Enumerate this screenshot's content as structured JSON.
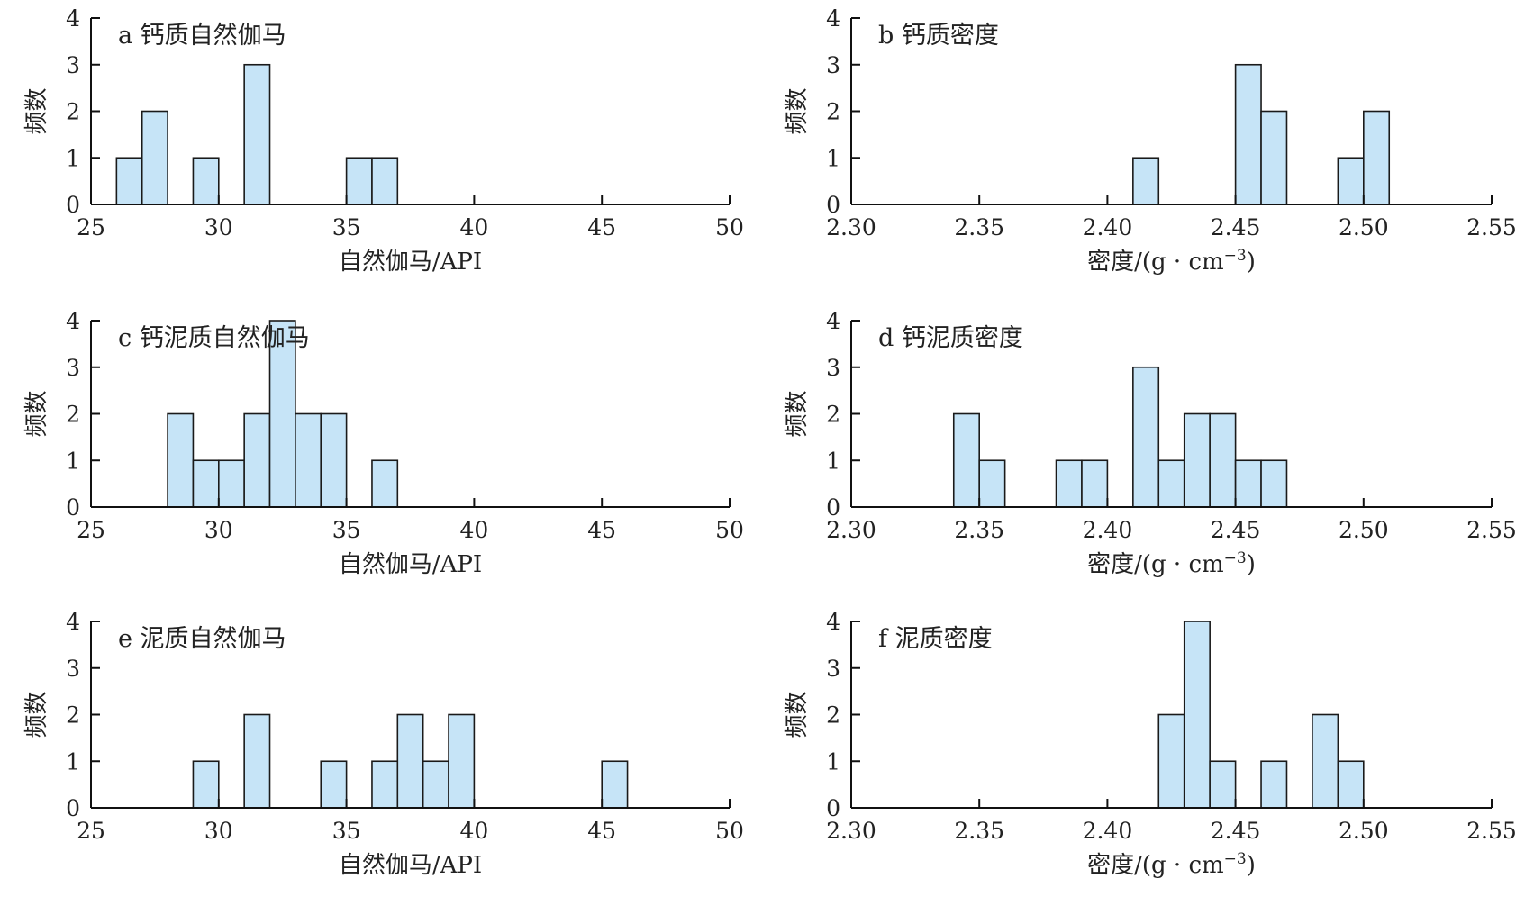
{
  "chart_data": [
    {
      "type": "bar",
      "title": "a 钙质自然伽马",
      "xlabel": "自然伽马/API",
      "ylabel": "频数",
      "xlim": [
        25,
        50
      ],
      "ylim": [
        0,
        4
      ],
      "xticks": [
        "25",
        "30",
        "35",
        "40",
        "45",
        "50"
      ],
      "yticks": [
        "0",
        "1",
        "2",
        "3",
        "4"
      ],
      "bins": [
        {
          "start": 26,
          "end": 27,
          "count": 1
        },
        {
          "start": 27,
          "end": 28,
          "count": 2
        },
        {
          "start": 29,
          "end": 30,
          "count": 1
        },
        {
          "start": 31,
          "end": 32,
          "count": 3
        },
        {
          "start": 35,
          "end": 36,
          "count": 1
        },
        {
          "start": 36,
          "end": 37,
          "count": 1
        }
      ]
    },
    {
      "type": "bar",
      "title": "b 钙质密度",
      "xlabel": "密度/(g · cm",
      "xlabel_sup": "−3",
      "xlabel_suffix": ")",
      "ylabel": "频数",
      "xlim": [
        2.3,
        2.55
      ],
      "ylim": [
        0,
        4
      ],
      "xticks": [
        "2.30",
        "2.35",
        "2.40",
        "2.45",
        "2.50",
        "2.55"
      ],
      "yticks": [
        "0",
        "1",
        "2",
        "3",
        "4"
      ],
      "bins": [
        {
          "start": 2.41,
          "end": 2.42,
          "count": 1
        },
        {
          "start": 2.45,
          "end": 2.46,
          "count": 3
        },
        {
          "start": 2.46,
          "end": 2.47,
          "count": 2
        },
        {
          "start": 2.49,
          "end": 2.5,
          "count": 1
        },
        {
          "start": 2.5,
          "end": 2.51,
          "count": 2
        }
      ]
    },
    {
      "type": "bar",
      "title": "c 钙泥质自然伽马",
      "xlabel": "自然伽马/API",
      "ylabel": "频数",
      "xlim": [
        25,
        50
      ],
      "ylim": [
        0,
        4
      ],
      "xticks": [
        "25",
        "30",
        "35",
        "40",
        "45",
        "50"
      ],
      "yticks": [
        "0",
        "1",
        "2",
        "3",
        "4"
      ],
      "bins": [
        {
          "start": 28,
          "end": 29,
          "count": 2
        },
        {
          "start": 29,
          "end": 30,
          "count": 1
        },
        {
          "start": 30,
          "end": 31,
          "count": 1
        },
        {
          "start": 31,
          "end": 32,
          "count": 2
        },
        {
          "start": 32,
          "end": 33,
          "count": 4
        },
        {
          "start": 33,
          "end": 34,
          "count": 2
        },
        {
          "start": 34,
          "end": 35,
          "count": 2
        },
        {
          "start": 36,
          "end": 37,
          "count": 1
        }
      ]
    },
    {
      "type": "bar",
      "title": "d 钙泥质密度",
      "xlabel": "密度/(g · cm",
      "xlabel_sup": "−3",
      "xlabel_suffix": ")",
      "ylabel": "频数",
      "xlim": [
        2.3,
        2.55
      ],
      "ylim": [
        0,
        4
      ],
      "xticks": [
        "2.30",
        "2.35",
        "2.40",
        "2.45",
        "2.50",
        "2.55"
      ],
      "yticks": [
        "0",
        "1",
        "2",
        "3",
        "4"
      ],
      "bins": [
        {
          "start": 2.34,
          "end": 2.35,
          "count": 2
        },
        {
          "start": 2.35,
          "end": 2.36,
          "count": 1
        },
        {
          "start": 2.38,
          "end": 2.39,
          "count": 1
        },
        {
          "start": 2.39,
          "end": 2.4,
          "count": 1
        },
        {
          "start": 2.41,
          "end": 2.42,
          "count": 3
        },
        {
          "start": 2.42,
          "end": 2.43,
          "count": 1
        },
        {
          "start": 2.43,
          "end": 2.44,
          "count": 2
        },
        {
          "start": 2.44,
          "end": 2.45,
          "count": 2
        },
        {
          "start": 2.45,
          "end": 2.46,
          "count": 1
        },
        {
          "start": 2.46,
          "end": 2.47,
          "count": 1
        }
      ]
    },
    {
      "type": "bar",
      "title": "e 泥质自然伽马",
      "xlabel": "自然伽马/API",
      "ylabel": "频数",
      "xlim": [
        25,
        50
      ],
      "ylim": [
        0,
        4
      ],
      "xticks": [
        "25",
        "30",
        "35",
        "40",
        "45",
        "50"
      ],
      "yticks": [
        "0",
        "1",
        "2",
        "3",
        "4"
      ],
      "bins": [
        {
          "start": 29,
          "end": 30,
          "count": 1
        },
        {
          "start": 31,
          "end": 32,
          "count": 2
        },
        {
          "start": 34,
          "end": 35,
          "count": 1
        },
        {
          "start": 36,
          "end": 37,
          "count": 1
        },
        {
          "start": 37,
          "end": 38,
          "count": 2
        },
        {
          "start": 38,
          "end": 39,
          "count": 1
        },
        {
          "start": 39,
          "end": 40,
          "count": 2
        },
        {
          "start": 45,
          "end": 46,
          "count": 1
        }
      ]
    },
    {
      "type": "bar",
      "title": "f 泥质密度",
      "xlabel": "密度/(g · cm",
      "xlabel_sup": "−3",
      "xlabel_suffix": ")",
      "ylabel": "频数",
      "xlim": [
        2.3,
        2.55
      ],
      "ylim": [
        0,
        4
      ],
      "xticks": [
        "2.30",
        "2.35",
        "2.40",
        "2.45",
        "2.50",
        "2.55"
      ],
      "yticks": [
        "0",
        "1",
        "2",
        "3",
        "4"
      ],
      "bins": [
        {
          "start": 2.42,
          "end": 2.43,
          "count": 2
        },
        {
          "start": 2.43,
          "end": 2.44,
          "count": 4
        },
        {
          "start": 2.44,
          "end": 2.45,
          "count": 1
        },
        {
          "start": 2.46,
          "end": 2.47,
          "count": 1
        },
        {
          "start": 2.48,
          "end": 2.49,
          "count": 2
        },
        {
          "start": 2.49,
          "end": 2.5,
          "count": 1
        }
      ]
    }
  ]
}
